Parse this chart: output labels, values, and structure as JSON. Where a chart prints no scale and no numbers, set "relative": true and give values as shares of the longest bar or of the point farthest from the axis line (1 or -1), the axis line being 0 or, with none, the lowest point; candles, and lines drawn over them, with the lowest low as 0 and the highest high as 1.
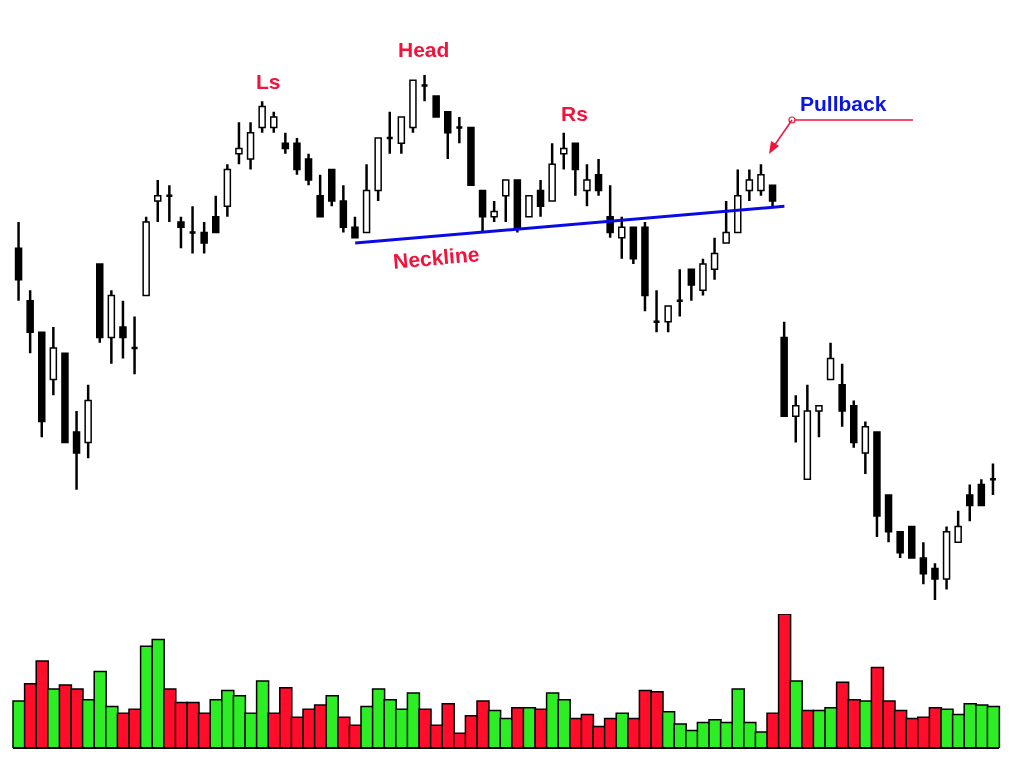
{
  "chart_data": [
    {
      "type": "candlestick",
      "relative": true,
      "categories": [
        null,
        null,
        null,
        null,
        null,
        null,
        null,
        null,
        null,
        null,
        null,
        null,
        null,
        null,
        null,
        null,
        null,
        null,
        null,
        null,
        null,
        null,
        null,
        null,
        null,
        null,
        null,
        null,
        null,
        null,
        null,
        null,
        null,
        null,
        null,
        null,
        null,
        null,
        null,
        null,
        null,
        null,
        null,
        null,
        null,
        null,
        null,
        null,
        null,
        null,
        null,
        null,
        null,
        null,
        null,
        null,
        null,
        null,
        null,
        null,
        null,
        null,
        null,
        null,
        null,
        null,
        null,
        null,
        null,
        null,
        null,
        null,
        null,
        null,
        null,
        null,
        null,
        null,
        null,
        null,
        null,
        null,
        null,
        null,
        null
      ],
      "ohlc": [
        [
          0.67,
          0.72,
          0.57,
          0.61
        ],
        [
          0.57,
          0.59,
          0.47,
          0.51
        ],
        [
          0.51,
          0.51,
          0.31,
          0.34
        ],
        [
          0.42,
          0.52,
          0.39,
          0.48
        ],
        [
          0.47,
          0.47,
          0.3,
          0.3
        ],
        [
          0.32,
          0.36,
          0.21,
          0.28
        ],
        [
          0.3,
          0.41,
          0.27,
          0.38
        ],
        [
          0.64,
          0.64,
          0.49,
          0.5
        ],
        [
          0.5,
          0.59,
          0.45,
          0.58
        ],
        [
          0.52,
          0.57,
          0.46,
          0.5
        ],
        [
          0.48,
          0.54,
          0.43,
          0.48
        ],
        [
          0.58,
          0.73,
          0.58,
          0.72
        ],
        [
          0.76,
          0.8,
          0.72,
          0.77
        ],
        [
          0.77,
          0.79,
          0.72,
          0.77
        ],
        [
          0.72,
          0.73,
          0.67,
          0.71
        ],
        [
          0.7,
          0.75,
          0.66,
          0.7
        ],
        [
          0.7,
          0.72,
          0.66,
          0.68
        ],
        [
          0.73,
          0.77,
          0.7,
          0.7
        ],
        [
          0.75,
          0.83,
          0.73,
          0.82
        ],
        [
          0.85,
          0.91,
          0.83,
          0.86
        ],
        [
          0.84,
          0.91,
          0.82,
          0.89
        ],
        [
          0.9,
          0.95,
          0.89,
          0.94
        ],
        [
          0.9,
          0.93,
          0.89,
          0.92
        ],
        [
          0.87,
          0.89,
          0.85,
          0.86
        ],
        [
          0.87,
          0.88,
          0.81,
          0.82
        ],
        [
          0.84,
          0.85,
          0.79,
          0.8
        ],
        [
          0.77,
          0.81,
          0.73,
          0.73
        ],
        [
          0.82,
          0.82,
          0.75,
          0.76
        ],
        [
          0.76,
          0.79,
          0.7,
          0.71
        ],
        [
          0.71,
          0.73,
          0.69,
          0.69
        ],
        [
          0.7,
          0.83,
          0.7,
          0.78
        ],
        [
          0.78,
          0.88,
          0.76,
          0.88
        ],
        [
          0.88,
          0.93,
          0.85,
          0.88
        ],
        [
          0.87,
          0.92,
          0.85,
          0.92
        ],
        [
          0.9,
          0.99,
          0.89,
          0.99
        ],
        [
          0.98,
          1,
          0.95,
          0.98
        ],
        [
          0.96,
          0.96,
          0.92,
          0.92
        ],
        [
          0.93,
          0.93,
          0.84,
          0.89
        ],
        [
          0.9,
          0.92,
          0.87,
          0.9
        ],
        [
          0.9,
          0.9,
          0.79,
          0.79
        ],
        [
          0.78,
          0.78,
          0.7,
          0.73
        ],
        [
          0.73,
          0.76,
          0.72,
          0.74
        ],
        [
          0.77,
          0.8,
          0.72,
          0.8
        ],
        [
          0.8,
          0.8,
          0.7,
          0.71
        ],
        [
          0.73,
          0.77,
          0.73,
          0.77
        ],
        [
          0.78,
          0.8,
          0.73,
          0.75
        ],
        [
          0.76,
          0.87,
          0.76,
          0.83
        ],
        [
          0.85,
          0.89,
          0.82,
          0.86
        ],
        [
          0.87,
          0.87,
          0.77,
          0.82
        ],
        [
          0.78,
          0.83,
          0.75,
          0.8
        ],
        [
          0.81,
          0.84,
          0.77,
          0.78
        ],
        [
          0.73,
          0.79,
          0.69,
          0.7
        ],
        [
          0.69,
          0.73,
          0.65,
          0.71
        ],
        [
          0.71,
          0.71,
          0.64,
          0.65
        ],
        [
          0.71,
          0.72,
          0.55,
          0.58
        ],
        [
          0.53,
          0.59,
          0.51,
          0.53
        ],
        [
          0.53,
          0.56,
          0.51,
          0.56
        ],
        [
          0.57,
          0.63,
          0.54,
          0.57
        ],
        [
          0.63,
          0.63,
          0.57,
          0.6
        ],
        [
          0.59,
          0.65,
          0.58,
          0.64
        ],
        [
          0.63,
          0.69,
          0.61,
          0.66
        ],
        [
          0.68,
          0.76,
          0.68,
          0.7
        ],
        [
          0.7,
          0.82,
          0.7,
          0.77
        ],
        [
          0.78,
          0.82,
          0.76,
          0.8
        ],
        [
          0.78,
          0.83,
          0.77,
          0.81
        ],
        [
          0.79,
          0.79,
          0.75,
          0.76
        ],
        [
          0.5,
          0.53,
          0.35,
          0.35
        ],
        [
          0.35,
          0.39,
          0.3,
          0.37
        ],
        [
          0.23,
          0.41,
          0.23,
          0.36
        ],
        [
          0.36,
          0.37,
          0.31,
          0.37
        ],
        [
          0.42,
          0.49,
          0.42,
          0.46
        ],
        [
          0.41,
          0.45,
          0.33,
          0.36
        ],
        [
          0.37,
          0.38,
          0.29,
          0.3
        ],
        [
          0.28,
          0.34,
          0.24,
          0.33
        ],
        [
          0.32,
          0.32,
          0.12,
          0.16
        ],
        [
          0.2,
          0.2,
          0.11,
          0.13
        ],
        [
          0.13,
          0.13,
          0.08,
          0.09
        ],
        [
          0.14,
          0.14,
          0.08,
          0.08
        ],
        [
          0.08,
          0.11,
          0.03,
          0.05
        ],
        [
          0.06,
          0.07,
          0,
          0.04
        ],
        [
          0.04,
          0.14,
          0.02,
          0.13
        ],
        [
          0.11,
          0.17,
          0.11,
          0.14
        ],
        [
          0.2,
          0.22,
          0.15,
          0.18
        ],
        [
          0.22,
          0.23,
          0.18,
          0.18
        ],
        [
          0.23,
          0.26,
          0.2,
          0.23
        ]
      ],
      "series": [
        {
          "type": "line",
          "name": "Neckline",
          "color": "#0a0ae6",
          "values": [
            null,
            null,
            null,
            null,
            null,
            null,
            null,
            null,
            null,
            null,
            null,
            null,
            null,
            null,
            null,
            null,
            null,
            null,
            null,
            null,
            null,
            null,
            null,
            null,
            null,
            null,
            null,
            null,
            null,
            0.68,
            null,
            null,
            null,
            null,
            null,
            null,
            null,
            null,
            null,
            null,
            null,
            null,
            null,
            null,
            null,
            null,
            null,
            null,
            null,
            null,
            null,
            null,
            null,
            null,
            null,
            null,
            null,
            null,
            null,
            null,
            null,
            null,
            null,
            null,
            null,
            null,
            0.75,
            null,
            null,
            null,
            null,
            null,
            null,
            null,
            null,
            null,
            null,
            null,
            null,
            null,
            null,
            null,
            null,
            null,
            null
          ]
        }
      ],
      "annotations": [
        "Ls",
        "Head",
        "Rs",
        "Pullback"
      ]
    },
    {
      "type": "bar",
      "relative": true,
      "categories": [
        null,
        null,
        null,
        null,
        null,
        null,
        null,
        null,
        null,
        null,
        null,
        null,
        null,
        null,
        null,
        null,
        null,
        null,
        null,
        null,
        null,
        null,
        null,
        null,
        null,
        null,
        null,
        null,
        null,
        null,
        null,
        null,
        null,
        null,
        null,
        null,
        null,
        null,
        null,
        null,
        null,
        null,
        null,
        null,
        null,
        null,
        null,
        null,
        null,
        null,
        null,
        null,
        null,
        null,
        null,
        null,
        null,
        null,
        null,
        null,
        null,
        null,
        null,
        null,
        null,
        null,
        null,
        null,
        null,
        null,
        null,
        null,
        null,
        null,
        null,
        null,
        null,
        null,
        null,
        null,
        null,
        null,
        null,
        null,
        null
      ],
      "values": [
        0.35,
        0.48,
        0.65,
        0.44,
        0.47,
        0.44,
        0.36,
        0.57,
        0.31,
        0.26,
        0.29,
        0.76,
        0.81,
        0.44,
        0.34,
        0.34,
        0.26,
        0.36,
        0.43,
        0.39,
        0.26,
        0.5,
        0.26,
        0.45,
        0.23,
        0.29,
        0.32,
        0.39,
        0.23,
        0.17,
        0.31,
        0.44,
        0.36,
        0.29,
        0.41,
        0.29,
        0.17,
        0.33,
        0.11,
        0.24,
        0.35,
        0.28,
        0.22,
        0.3,
        0.3,
        0.29,
        0.41,
        0.36,
        0.22,
        0.25,
        0.16,
        0.22,
        0.26,
        0.22,
        0.43,
        0.42,
        0.27,
        0.18,
        0.13,
        0.19,
        0.21,
        0.19,
        0.44,
        0.19,
        0.12,
        0.26,
        1,
        0.5,
        0.28,
        0.28,
        0.3,
        0.49,
        0.36,
        0.35,
        0.6,
        0.35,
        0.28,
        0.22,
        0.23,
        0.3,
        0.29,
        0.25,
        0.33,
        0.32,
        0.31
      ],
      "colors": [
        "#2ded24",
        "#ff0d2b",
        "#ff0d2b",
        "#2ded24",
        "#ff0d2b",
        "#ff0d2b",
        "#2ded24",
        "#2ded24",
        "#2ded24",
        "#ff0d2b",
        "#ff0d2b",
        "#2ded24",
        "#2ded24",
        "#ff0d2b",
        "#ff0d2b",
        "#ff0d2b",
        "#ff0d2b",
        "#2ded24",
        "#2ded24",
        "#2ded24",
        "#2ded24",
        "#2ded24",
        "#ff0d2b",
        "#ff0d2b",
        "#ff0d2b",
        "#ff0d2b",
        "#ff0d2b",
        "#2ded24",
        "#ff0d2b",
        "#ff0d2b",
        "#2ded24",
        "#2ded24",
        "#2ded24",
        "#2ded24",
        "#2ded24",
        "#ff0d2b",
        "#ff0d2b",
        "#ff0d2b",
        "#ff0d2b",
        "#ff0d2b",
        "#ff0d2b",
        "#2ded24",
        "#2ded24",
        "#ff0d2b",
        "#2ded24",
        "#ff0d2b",
        "#2ded24",
        "#2ded24",
        "#ff0d2b",
        "#ff0d2b",
        "#ff0d2b",
        "#ff0d2b",
        "#2ded24",
        "#ff0d2b",
        "#ff0d2b",
        "#ff0d2b",
        "#2ded24",
        "#2ded24",
        "#2ded24",
        "#2ded24",
        "#2ded24",
        "#2ded24",
        "#2ded24",
        "#2ded24",
        "#2ded24",
        "#ff0d2b",
        "#ff0d2b",
        "#2ded24",
        "#ff0d2b",
        "#2ded24",
        "#2ded24",
        "#ff0d2b",
        "#ff0d2b",
        "#2ded24",
        "#ff0d2b",
        "#ff0d2b",
        "#ff0d2b",
        "#ff0d2b",
        "#ff0d2b",
        "#ff0d2b",
        "#2ded24",
        "#2ded24",
        "#2ded24",
        "#2ded24",
        "#2ded24"
      ]
    }
  ]
}
